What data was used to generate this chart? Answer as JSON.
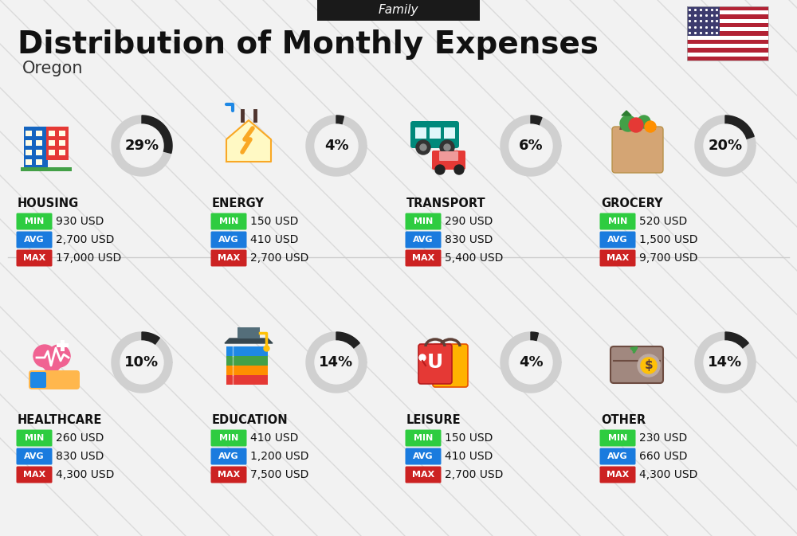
{
  "title": "Distribution of Monthly Expenses",
  "subtitle": "Family",
  "location": "Oregon",
  "background_color": "#f2f2f2",
  "header_bg": "#1a1a1a",
  "header_text_color": "#ffffff",
  "categories": [
    {
      "name": "HOUSING",
      "percent": 29,
      "min": "930 USD",
      "avg": "2,700 USD",
      "max": "17,000 USD",
      "row": 0,
      "col": 0
    },
    {
      "name": "ENERGY",
      "percent": 4,
      "min": "150 USD",
      "avg": "410 USD",
      "max": "2,700 USD",
      "row": 0,
      "col": 1
    },
    {
      "name": "TRANSPORT",
      "percent": 6,
      "min": "290 USD",
      "avg": "830 USD",
      "max": "5,400 USD",
      "row": 0,
      "col": 2
    },
    {
      "name": "GROCERY",
      "percent": 20,
      "min": "520 USD",
      "avg": "1,500 USD",
      "max": "9,700 USD",
      "row": 0,
      "col": 3
    },
    {
      "name": "HEALTHCARE",
      "percent": 10,
      "min": "260 USD",
      "avg": "830 USD",
      "max": "4,300 USD",
      "row": 1,
      "col": 0
    },
    {
      "name": "EDUCATION",
      "percent": 14,
      "min": "410 USD",
      "avg": "1,200 USD",
      "max": "7,500 USD",
      "row": 1,
      "col": 1
    },
    {
      "name": "LEISURE",
      "percent": 4,
      "min": "150 USD",
      "avg": "410 USD",
      "max": "2,700 USD",
      "row": 1,
      "col": 2
    },
    {
      "name": "OTHER",
      "percent": 14,
      "min": "230 USD",
      "avg": "660 USD",
      "max": "4,300 USD",
      "row": 1,
      "col": 3
    }
  ],
  "min_color": "#2ecc40",
  "avg_color": "#1a7bde",
  "max_color": "#cc2222",
  "value_text_color": "#111111",
  "category_text_color": "#111111",
  "donut_bg_color": "#d0d0d0",
  "donut_fill_color": "#222222",
  "donut_center_color": "#f2f2f2"
}
